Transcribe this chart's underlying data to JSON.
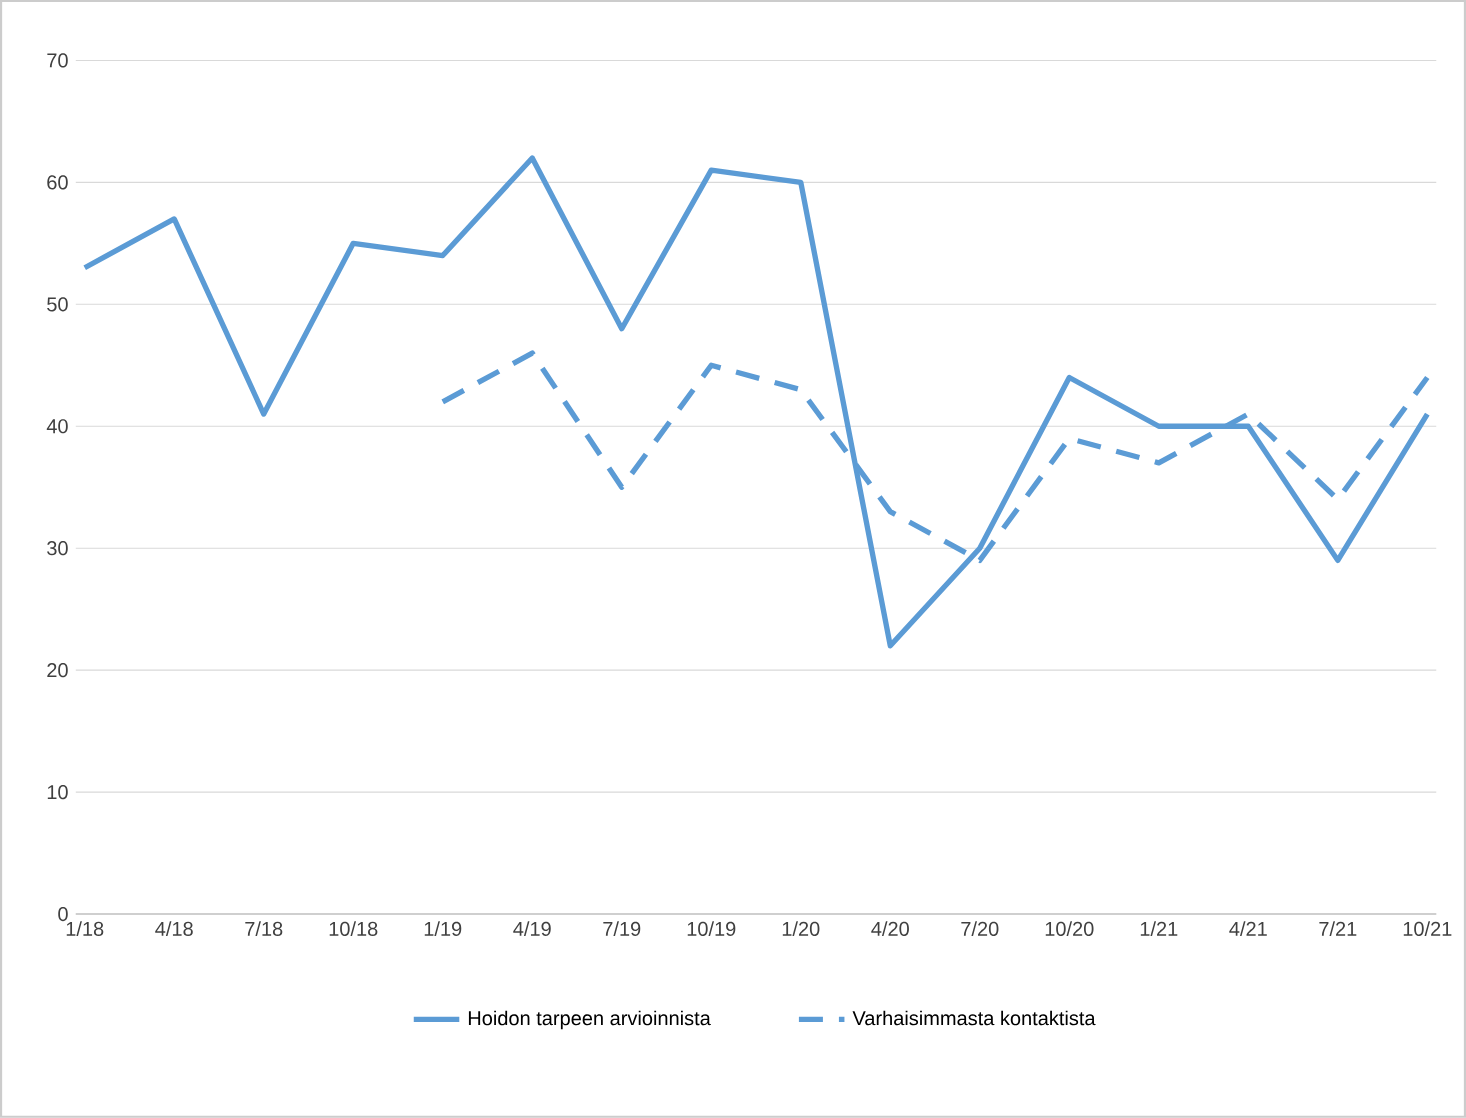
{
  "chart_data": {
    "type": "line",
    "categories": [
      "1/18",
      "4/18",
      "7/18",
      "10/18",
      "1/19",
      "4/19",
      "7/19",
      "10/19",
      "1/20",
      "4/20",
      "7/20",
      "10/20",
      "1/21",
      "4/21",
      "7/21",
      "10/21"
    ],
    "series": [
      {
        "name": "Hoidon tarpeen arvioinnista",
        "color": "#5b9bd5",
        "line_style": "solid",
        "values": [
          53,
          57,
          41,
          55,
          54,
          62,
          48,
          61,
          60,
          22,
          30,
          44,
          40,
          40,
          29,
          41
        ]
      },
      {
        "name": "Varhaisimmasta kontaktista",
        "color": "#5b9bd5",
        "line_style": "dashed",
        "values": [
          null,
          null,
          null,
          null,
          42,
          46,
          35,
          45,
          43,
          33,
          29,
          39,
          37,
          41,
          34,
          44
        ]
      }
    ],
    "ylim": [
      0,
      70
    ],
    "yticks": [
      0,
      10,
      20,
      30,
      40,
      50,
      60,
      70
    ],
    "grid": "y",
    "legend": "bottom",
    "marker": "none"
  }
}
